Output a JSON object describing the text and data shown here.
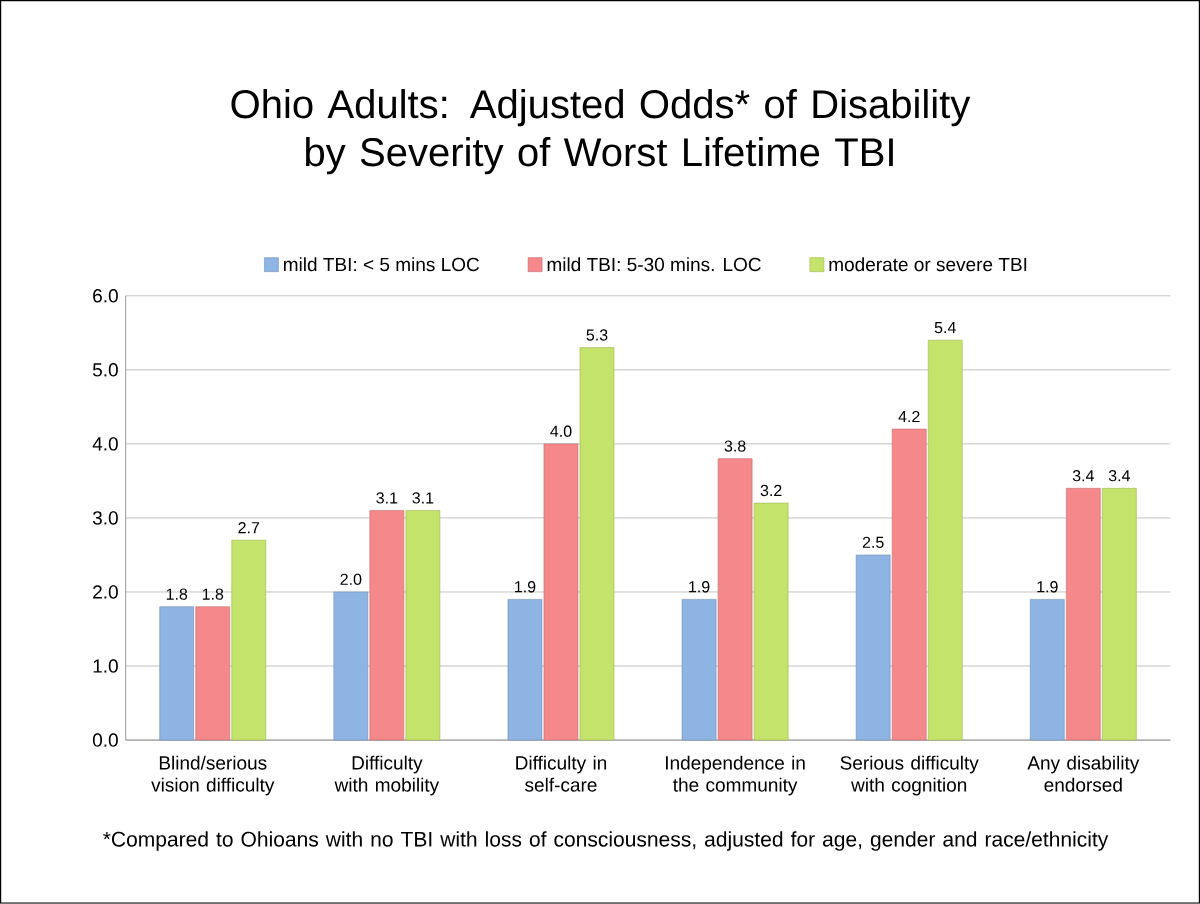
{
  "chart_data": {
    "type": "bar",
    "title": "Ohio Adults: Adjusted Odds* of Disability by Severity of Worst Lifetime TBI",
    "categories": [
      "Blind/serious vision difficulty",
      "Difficulty with mobility",
      "Difficulty in self-care",
      "Independence in the community",
      "Serious difficulty with cognition",
      "Any disability endorsed"
    ],
    "series": [
      {
        "name": "mild TBI: < 5 mins LOC",
        "color": "#8db4e2",
        "values": [
          1.8,
          2.0,
          1.9,
          1.9,
          2.5,
          1.9
        ],
        "value_labels": [
          "1.8",
          "2.0",
          "1.9",
          "1.9",
          "2.5",
          "1.9"
        ]
      },
      {
        "name": "mild TBI: 5-30 mins. LOC",
        "color": "#f4888a",
        "values": [
          1.8,
          3.1,
          4.0,
          3.8,
          4.2,
          3.4
        ],
        "value_labels": [
          "1.8",
          "3.1",
          "4.0",
          "3.8",
          "4.2",
          "3.4"
        ]
      },
      {
        "name": "moderate or severe TBI",
        "color": "#c4e36a",
        "values": [
          2.7,
          3.1,
          5.3,
          3.2,
          5.4,
          3.4
        ],
        "value_labels": [
          "2.7",
          "3.1",
          "5.3",
          "3.2",
          "5.4",
          "3.4"
        ]
      }
    ],
    "ylim": [
      0,
      6
    ],
    "yticks": [
      {
        "value": 0,
        "label": "0.0"
      },
      {
        "value": 1,
        "label": "1.0"
      },
      {
        "value": 2,
        "label": "2.0"
      },
      {
        "value": 3,
        "label": "3.0"
      },
      {
        "value": 4,
        "label": "4.0"
      },
      {
        "value": 5,
        "label": "5.0"
      },
      {
        "value": 6,
        "label": "6.0"
      }
    ],
    "grid": "y",
    "legend": "top",
    "annotations": [
      "*Compared to Ohioans with no TBI with loss of consciousness, adjusted for age, gender and race/ethnicity"
    ]
  }
}
